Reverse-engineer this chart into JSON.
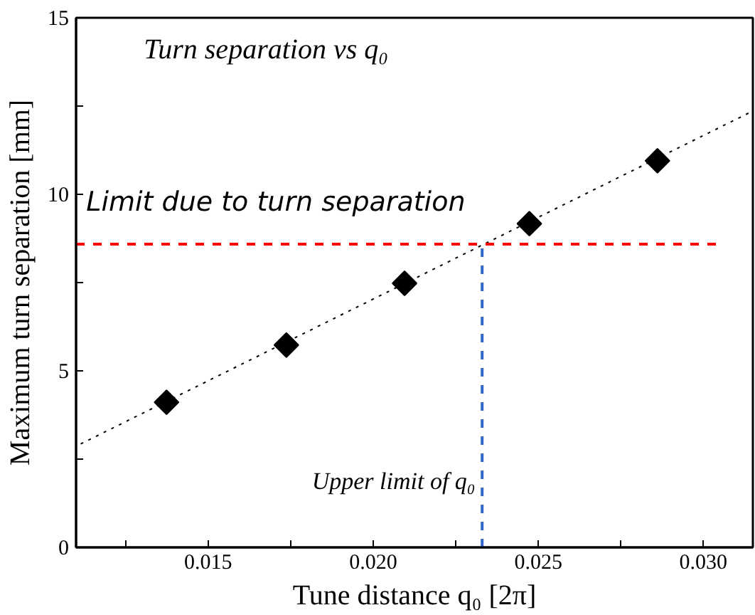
{
  "chart_data": {
    "type": "scatter",
    "title": "Turn separation vs q₀",
    "xlabel": "Tune distance q₀ [2π]",
    "ylabel": "Maximum turn separation [mm]",
    "x": [
      0.01374,
      0.01737,
      0.02095,
      0.02473,
      0.02861
    ],
    "series": [
      {
        "color": "#000000",
        "marker": "diamond",
        "values": [
          4.11,
          5.73,
          7.48,
          9.17,
          10.95
        ]
      },
      {
        "type": "line",
        "color": "#000000",
        "line_style": "dotted",
        "x": [
          0.01114,
          0.0315
        ],
        "values": [
          2.93,
          12.36
        ]
      }
    ],
    "xlim": [
      0.011,
      0.0315
    ],
    "ylim": [
      0,
      15
    ],
    "xticks": [
      {
        "value": 0.0125,
        "label": null
      },
      {
        "value": 0.015,
        "label": "0.015"
      },
      {
        "value": 0.0175,
        "label": null
      },
      {
        "value": 0.02,
        "label": "0.020"
      },
      {
        "value": 0.0225,
        "label": null
      },
      {
        "value": 0.025,
        "label": "0.025"
      },
      {
        "value": 0.0275,
        "label": null
      },
      {
        "value": 0.03,
        "label": "0.030"
      }
    ],
    "yticks": [
      0,
      {
        "value": 2.5,
        "label": null
      },
      5,
      {
        "value": 7.5,
        "label": null
      },
      10,
      {
        "value": 12.5,
        "label": null
      },
      15
    ],
    "ref_lines": [
      {
        "axis": "y",
        "value": 8.59,
        "label": "Limit due to turn separation",
        "color": "#ff0000",
        "line_style": "dashed"
      },
      {
        "axis": "x",
        "value": 0.0233,
        "label": "Upper limit of q₀",
        "color": "#3366cc",
        "line_style": "dashed"
      }
    ]
  }
}
